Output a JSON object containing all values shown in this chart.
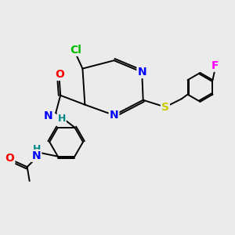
{
  "background_color": "#ebebeb",
  "bond_color": "#000000",
  "atom_colors": {
    "N": "#0000ff",
    "O": "#ff0000",
    "Cl": "#00bb00",
    "S": "#cccc00",
    "F": "#ff00ff",
    "H": "#008888",
    "C": "#000000"
  },
  "font_size": 9,
  "lw": 1.4
}
